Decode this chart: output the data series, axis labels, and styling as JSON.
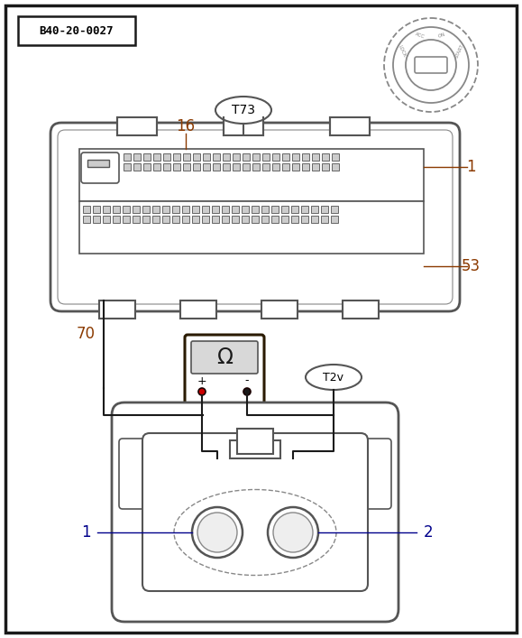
{
  "bg_color": "#ffffff",
  "border_color": "#000000",
  "dark_color": "#1a1a1a",
  "gray_color": "#555555",
  "light_gray": "#888888",
  "pin_fill": "#cccccc",
  "pin_edge": "#666666",
  "label_red": "#8B3A00",
  "label_blue": "#00008B",
  "labels": {
    "b40": "B40-20-0027",
    "t73": "T73",
    "t2v": "T2v",
    "num_16": "16",
    "num_1": "1",
    "num_53": "53",
    "num_70": "70",
    "num_1b": "1",
    "num_2b": "2"
  }
}
